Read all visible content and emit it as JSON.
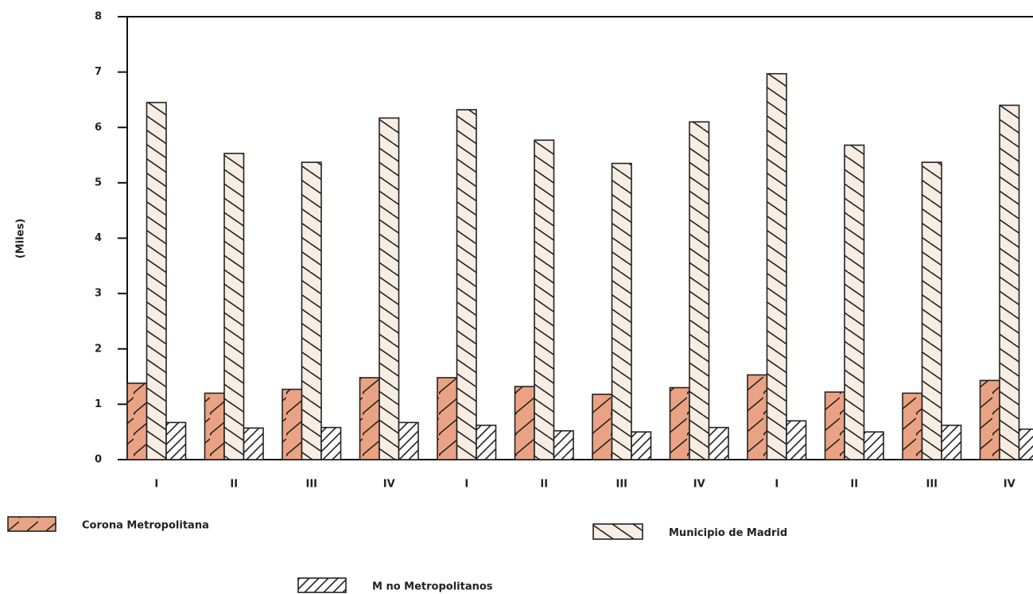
{
  "chart_data": {
    "type": "bar",
    "y_label": "(Miles)",
    "categories": [
      "I",
      "II",
      "III",
      "IV",
      "I",
      "II",
      "III",
      "IV",
      "I",
      "II",
      "III",
      "IV"
    ],
    "series": [
      {
        "name": "Corona Metropolitana",
        "color": "#e9a283",
        "values": [
          1.38,
          1.2,
          1.27,
          1.48,
          1.48,
          1.32,
          1.18,
          1.3,
          1.53,
          1.22,
          1.2,
          1.43
        ]
      },
      {
        "name": "Municipio de Madrid",
        "color": "#f7ede3",
        "values": [
          6.45,
          5.53,
          5.37,
          6.17,
          6.32,
          5.77,
          5.35,
          6.1,
          6.97,
          5.68,
          5.37,
          6.4
        ]
      },
      {
        "name": "M no Metropolitanos",
        "color": "#ffffff",
        "values": [
          0.67,
          0.57,
          0.58,
          0.67,
          0.62,
          0.52,
          0.5,
          0.58,
          0.7,
          0.5,
          0.62,
          0.55
        ]
      }
    ],
    "ylim": [
      0,
      8
    ],
    "yticks": [
      0,
      1,
      2,
      3,
      4,
      5,
      6,
      7,
      8
    ]
  }
}
